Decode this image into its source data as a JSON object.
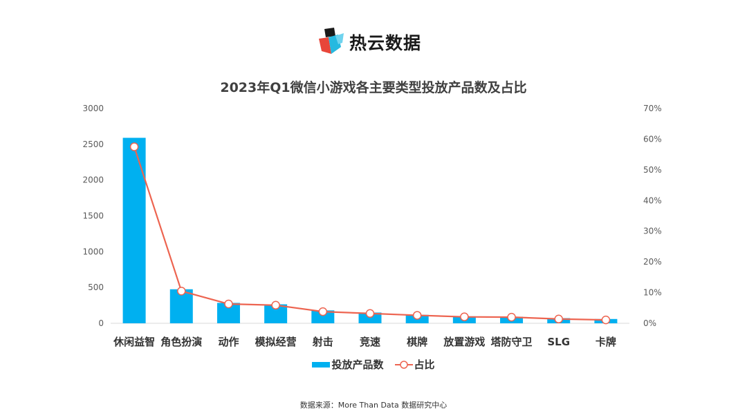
{
  "logo": {
    "text": "热云数据"
  },
  "source_note": "数据来源：More Than Data 数据研究中心",
  "colors": {
    "bar": "#00b0f0",
    "line": "#ed6450",
    "axis_text": "#595959"
  },
  "chart_data": {
    "type": "bar",
    "title": "2023年Q1微信小游戏各主要类型投放产品数及占比",
    "categories": [
      "休闲益智",
      "角色扮演",
      "动作",
      "模拟经营",
      "射击",
      "竞速",
      "棋牌",
      "放置游戏",
      "塔防守卫",
      "SLG",
      "卡牌"
    ],
    "series": [
      {
        "name": "投放产品数",
        "type": "bar",
        "axis": "left",
        "values": [
          2590,
          475,
          285,
          265,
          180,
          150,
          118,
          98,
          92,
          72,
          60
        ]
      },
      {
        "name": "占比",
        "type": "line",
        "axis": "right",
        "values": [
          0.575,
          0.105,
          0.063,
          0.059,
          0.038,
          0.032,
          0.026,
          0.021,
          0.02,
          0.014,
          0.011
        ]
      }
    ],
    "y_left": {
      "min": 0,
      "max": 3000,
      "ticks": [
        "0",
        "500",
        "1000",
        "1500",
        "2000",
        "2500",
        "3000"
      ]
    },
    "y_right": {
      "min": 0,
      "max": 0.7,
      "ticks": [
        "0%",
        "10%",
        "20%",
        "30%",
        "40%",
        "50%",
        "60%",
        "70%"
      ]
    },
    "grid": false,
    "legend_position": "bottom"
  }
}
